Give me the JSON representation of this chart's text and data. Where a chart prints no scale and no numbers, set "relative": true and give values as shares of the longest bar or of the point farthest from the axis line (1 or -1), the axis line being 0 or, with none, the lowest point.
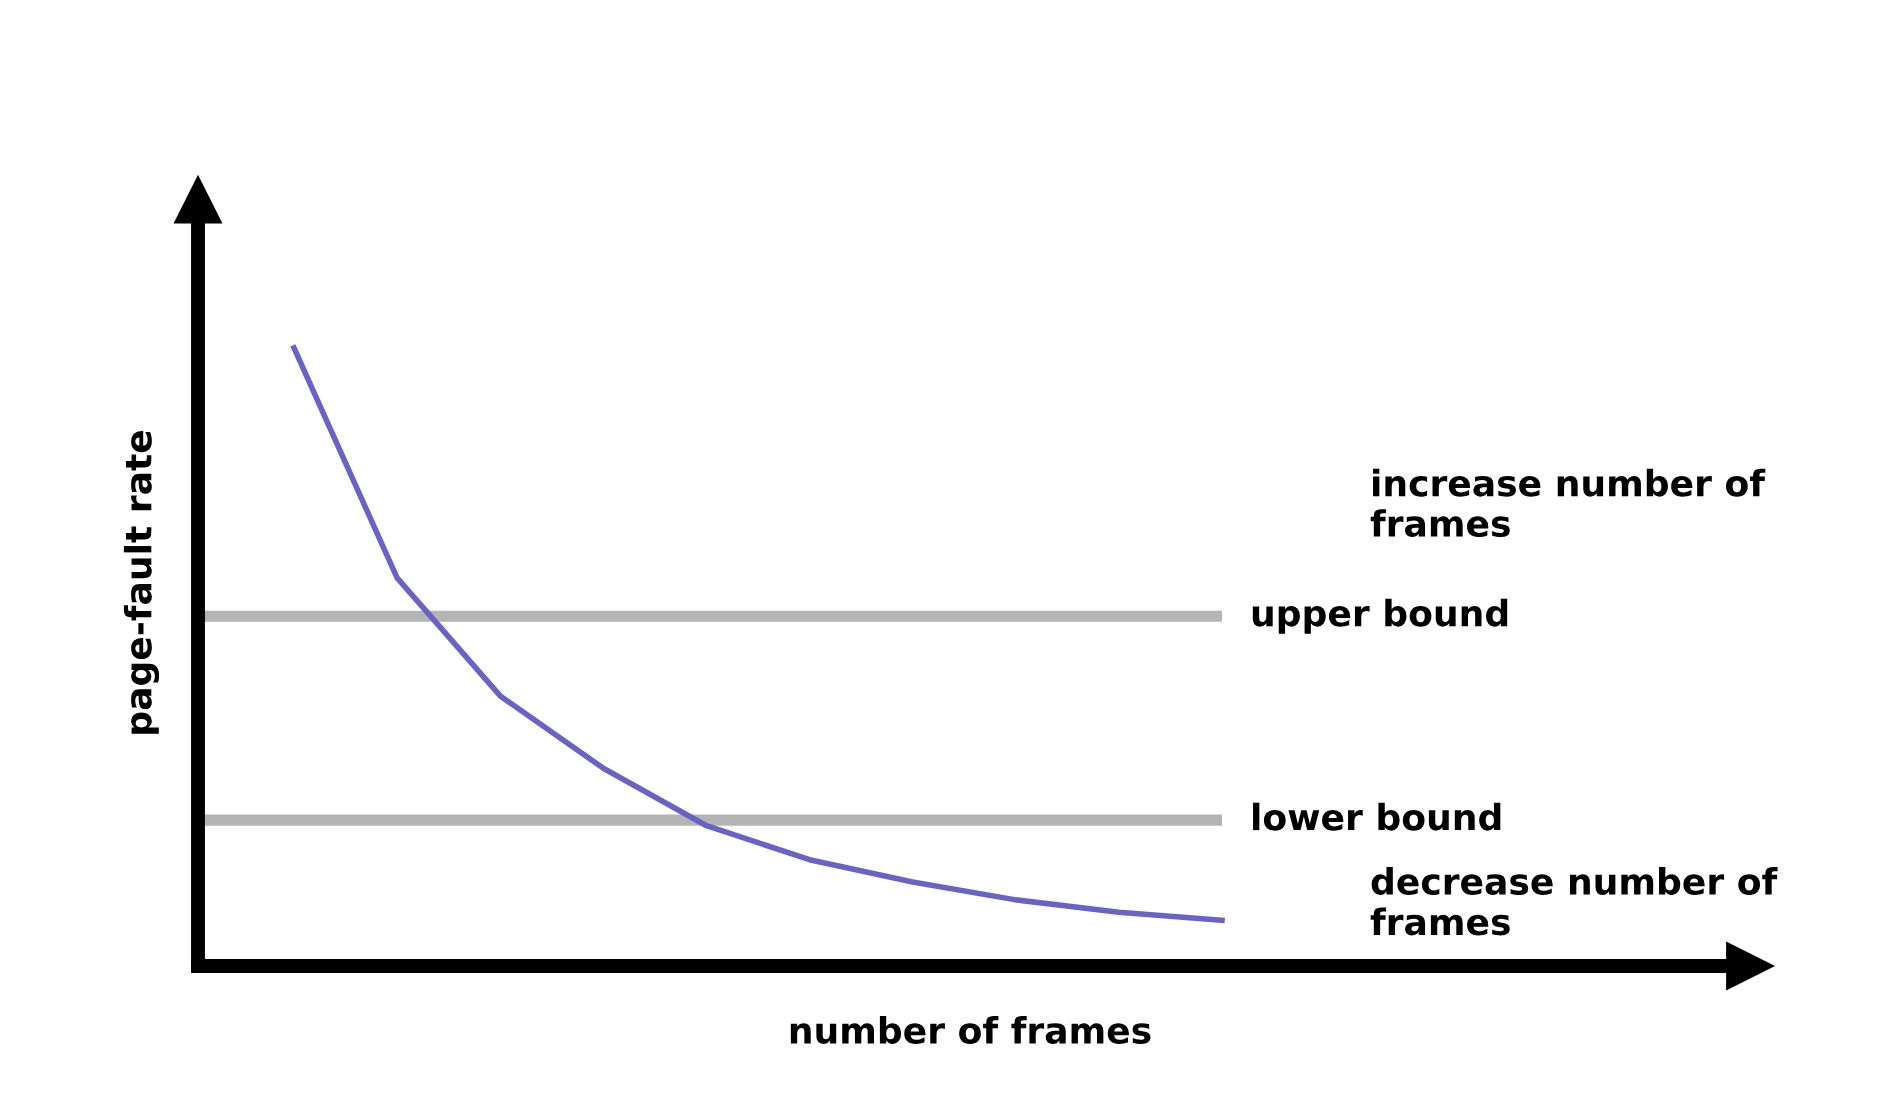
{
  "chart_data": {
    "type": "line",
    "relative": true,
    "xlabel": "number of frames",
    "ylabel": "page-fault rate",
    "categories": [
      null,
      null,
      null,
      null,
      null,
      null,
      null,
      null,
      null,
      null
    ],
    "series": [
      {
        "color": "#6a63c6",
        "values": [
          1,
          0.628,
          0.437,
          0.32,
          0.227,
          0.172,
          0.136,
          0.107,
          0.087,
          0.074
        ]
      }
    ],
    "ref_lines": [
      {
        "axis": "y",
        "value": 0.566,
        "label": "upper bound",
        "color": "#b4b4b4"
      },
      {
        "axis": "y",
        "value": 0.236,
        "label": "lower bound",
        "color": "#b4b4b4"
      }
    ],
    "annotations": [
      "increase number of frames",
      "decrease number of frames"
    ],
    "legend": false,
    "marker": "none",
    "line_style": "solid"
  }
}
